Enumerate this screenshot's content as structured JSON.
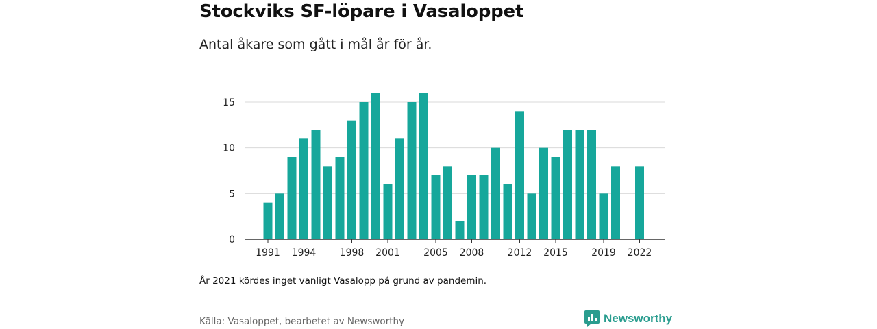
{
  "title": "Stockviks SF-löpare i Vasaloppet",
  "subtitle": "Antal åkare som gått i mål år för år.",
  "note": "År 2021 kördes inget vanligt Vasalopp på grund av pandemin.",
  "source": "Källa: Vasaloppet, bearbetet av Newsworthy",
  "brand": {
    "name": "Newsworthy",
    "icon": "newsworthy-logo-icon"
  },
  "colors": {
    "bar": "#16a79b",
    "grid": "#d9d9d9",
    "axis": "#333333",
    "brand": "#2a9d8f"
  },
  "chart_data": {
    "type": "bar",
    "categories": [
      1991,
      1992,
      1993,
      1994,
      1995,
      1996,
      1997,
      1998,
      1999,
      2000,
      2001,
      2002,
      2003,
      2004,
      2005,
      2006,
      2007,
      2008,
      2009,
      2010,
      2011,
      2012,
      2013,
      2014,
      2015,
      2016,
      2017,
      2018,
      2019,
      2020,
      2021,
      2022
    ],
    "values": [
      4,
      5,
      9,
      11,
      12,
      8,
      9,
      13,
      15,
      16,
      6,
      11,
      15,
      16,
      7,
      8,
      2,
      7,
      7,
      10,
      6,
      14,
      5,
      10,
      9,
      12,
      12,
      12,
      5,
      8,
      null,
      8
    ],
    "x_tick_labels": [
      "1991",
      "1994",
      "1998",
      "2001",
      "2005",
      "2008",
      "2012",
      "2015",
      "2019",
      "2022"
    ],
    "y_ticks": [
      0,
      5,
      10,
      15
    ],
    "ylim": [
      0,
      16
    ],
    "grid": true
  }
}
